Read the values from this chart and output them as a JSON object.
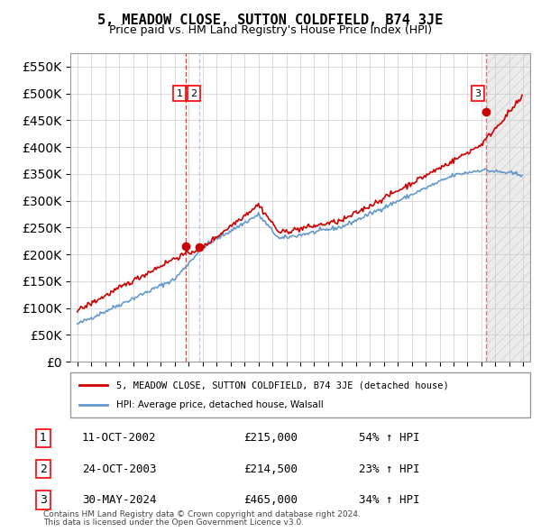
{
  "title": "5, MEADOW CLOSE, SUTTON COLDFIELD, B74 3JE",
  "subtitle": "Price paid vs. HM Land Registry's House Price Index (HPI)",
  "legend_line1": "5, MEADOW CLOSE, SUTTON COLDFIELD, B74 3JE (detached house)",
  "legend_line2": "HPI: Average price, detached house, Walsall",
  "footer1": "Contains HM Land Registry data © Crown copyright and database right 2024.",
  "footer2": "This data is licensed under the Open Government Licence v3.0.",
  "table": [
    {
      "num": "1",
      "date": "11-OCT-2002",
      "price": "£215,000",
      "change": "54% ↑ HPI"
    },
    {
      "num": "2",
      "date": "24-OCT-2003",
      "price": "£214,500",
      "change": "23% ↑ HPI"
    },
    {
      "num": "3",
      "date": "30-MAY-2024",
      "price": "£465,000",
      "change": "34% ↑ HPI"
    }
  ],
  "sale_dates": [
    "2002-10-11",
    "2003-10-24",
    "2024-05-30"
  ],
  "sale_prices": [
    215000,
    214500,
    465000
  ],
  "hpi_color": "#6699cc",
  "price_color": "#cc0000",
  "grid_color": "#cccccc",
  "background_color": "#ffffff",
  "ylim": [
    0,
    575000
  ],
  "yticks": [
    0,
    50000,
    100000,
    150000,
    200000,
    250000,
    300000,
    350000,
    400000,
    450000,
    500000,
    550000
  ],
  "xlim_start": 1994.5,
  "xlim_end": 2027.5
}
